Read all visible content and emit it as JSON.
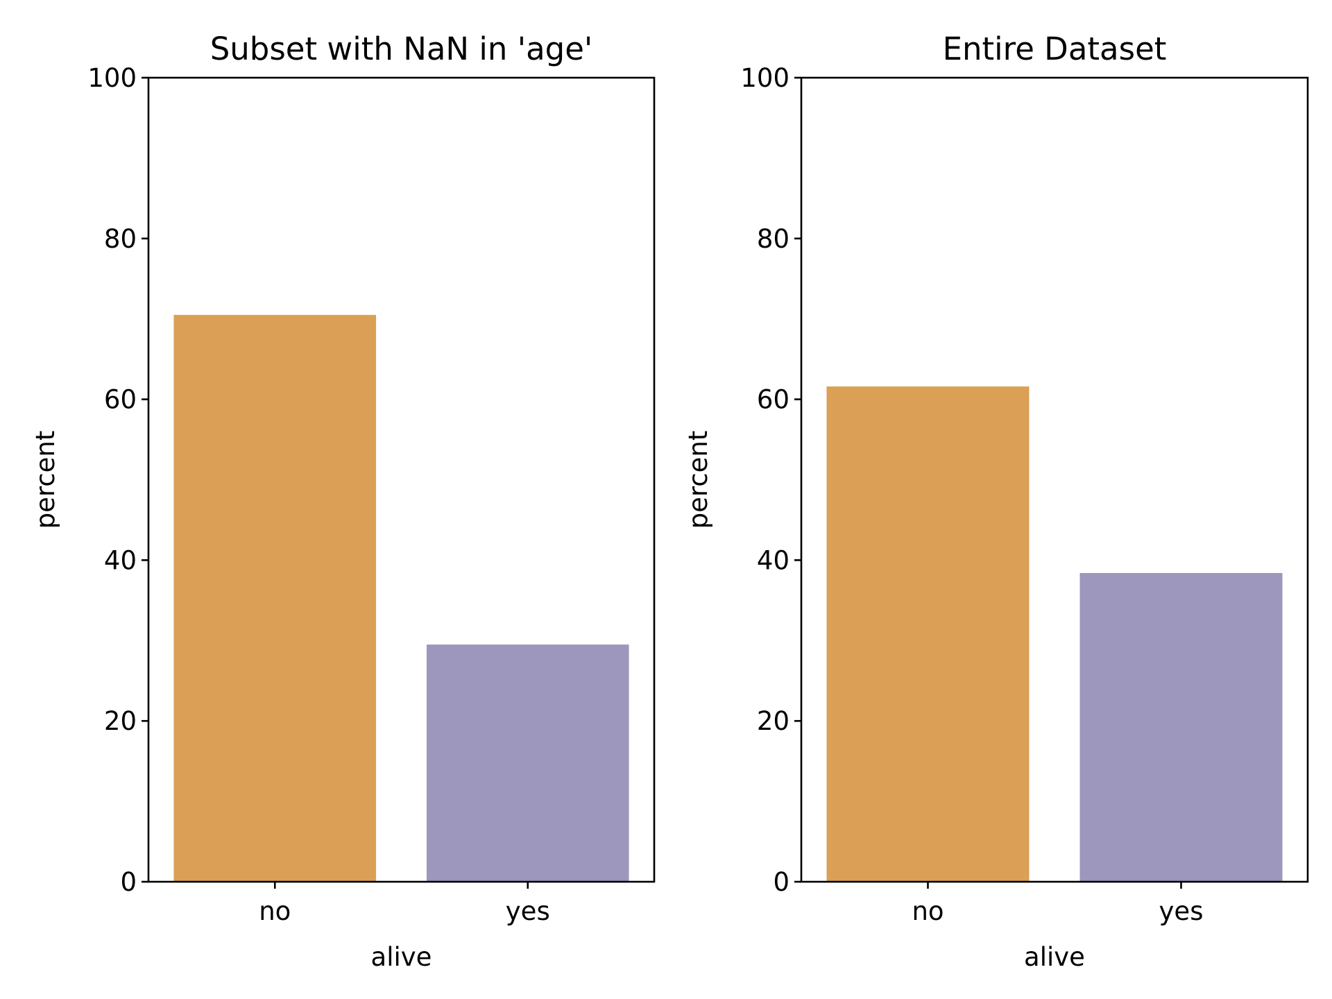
{
  "chart_data": [
    {
      "type": "bar",
      "title": "Subset with NaN in 'age'",
      "xlabel": "alive",
      "ylabel": "percent",
      "categories": [
        "no",
        "yes"
      ],
      "values": [
        70.5,
        29.5
      ],
      "colors": [
        "#dba055",
        "#9d96bd"
      ],
      "ylim": [
        0,
        100
      ],
      "yticks": [
        "0",
        "20",
        "40",
        "60",
        "80",
        "100"
      ],
      "grid": false
    },
    {
      "type": "bar",
      "title": "Entire Dataset",
      "xlabel": "alive",
      "ylabel": "percent",
      "categories": [
        "no",
        "yes"
      ],
      "values": [
        61.6,
        38.4
      ],
      "colors": [
        "#dba055",
        "#9d96bd"
      ],
      "ylim": [
        0,
        100
      ],
      "yticks": [
        "0",
        "20",
        "40",
        "60",
        "80",
        "100"
      ],
      "grid": false
    }
  ]
}
